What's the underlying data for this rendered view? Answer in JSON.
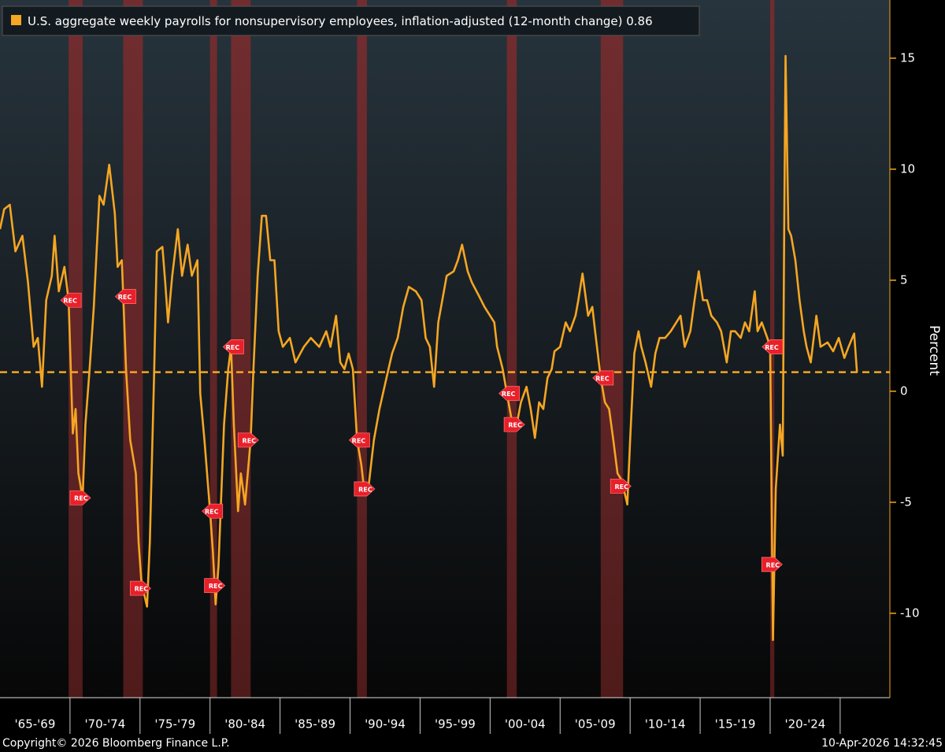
{
  "chart_data": {
    "type": "line",
    "series": [
      {
        "name": "U.S. aggregate weekly payrolls for nonsupervisory employees, inflation-adjusted (12-month change)",
        "color": "#f5a623",
        "values": [
          7.3,
          8.2,
          8.4,
          6.3,
          7.0,
          4.9,
          2.0,
          2.4,
          0.2,
          4.1,
          5.2,
          7.0,
          4.5,
          5.6,
          4.1,
          -1.9,
          -0.8,
          -3.7,
          -4.8,
          -1.5,
          1.0,
          3.8,
          8.8,
          8.4,
          10.2,
          8.0,
          5.6,
          5.9,
          1.0,
          -2.2,
          -3.7,
          -6.8,
          -8.6,
          -9.7,
          -6.8,
          0.6,
          6.3,
          6.5,
          4.9,
          3.1,
          5.2,
          7.3,
          5.2,
          6.6,
          5.2,
          5.9,
          -0.1,
          -2.2,
          -5.4,
          -7.2,
          -9.6,
          -7.9,
          -1.5,
          1.0,
          2.0,
          -1.5,
          -5.4,
          -3.7,
          -5.1,
          -2.2,
          1.0,
          5.2,
          7.9,
          7.9,
          5.9,
          5.9,
          2.7,
          2.0,
          2.4,
          1.3,
          2.0,
          2.4,
          2.0,
          2.7,
          2.0,
          3.4,
          1.3,
          1.0,
          1.7,
          1.0,
          -2.2,
          -3.3,
          -4.4,
          -4.4,
          -2.2,
          -0.8,
          0.6,
          1.7,
          2.4,
          3.8,
          4.7,
          4.5,
          4.1,
          2.4,
          2.0,
          0.2,
          3.1,
          3.8,
          5.2,
          5.4,
          5.9,
          6.6,
          5.4,
          4.9,
          4.3,
          3.8,
          3.4,
          3.1,
          2.0,
          1.0,
          -0.1,
          -1.5,
          -1.5,
          -0.5,
          0.2,
          -0.8,
          -2.1,
          -0.5,
          -0.8,
          0.6,
          1.0,
          1.8,
          2.0,
          3.1,
          2.7,
          3.4,
          4.1,
          5.3,
          3.4,
          3.8,
          2.7,
          0.6,
          -0.5,
          -0.8,
          -2.2,
          -3.7,
          -4.0,
          -5.1,
          -2.2,
          1.7,
          2.7,
          2.0,
          1.3,
          0.2,
          1.7,
          2.4,
          2.4,
          2.7,
          3.1,
          3.4,
          2.0,
          2.7,
          4.1,
          5.4,
          4.1,
          4.1,
          3.4,
          3.1,
          2.7,
          1.3,
          2.7,
          2.7,
          2.4,
          3.1,
          2.7,
          4.5,
          2.7,
          3.1,
          2.4,
          2.0,
          -4.4,
          -11.2,
          -4.4,
          -1.5,
          -2.9,
          7.0,
          15.1,
          7.3,
          7.0,
          5.9,
          4.1,
          2.7,
          2.0,
          1.3,
          3.4,
          2.0,
          2.2,
          1.8,
          2.4,
          1.5,
          2.0,
          2.6,
          0.86
        ]
      }
    ],
    "x": [
      1965.0,
      1965.3,
      1965.7,
      1966.1,
      1966.6,
      1967.0,
      1967.4,
      1967.7,
      1968.0,
      1968.3,
      1968.7,
      1968.9,
      1969.2,
      1969.6,
      1969.9,
      1970.2,
      1970.4,
      1970.6,
      1970.9,
      1971.1,
      1971.4,
      1971.7,
      1972.1,
      1972.4,
      1972.8,
      1973.2,
      1973.4,
      1973.7,
      1974.0,
      1974.3,
      1974.7,
      1974.9,
      1975.1,
      1975.5,
      1975.7,
      1976.0,
      1976.2,
      1976.6,
      1976.8,
      1977.0,
      1977.3,
      1977.7,
      1978.0,
      1978.4,
      1978.7,
      1979.1,
      1979.3,
      1979.6,
      1980.0,
      1980.2,
      1980.4,
      1980.6,
      1981.0,
      1981.3,
      1981.5,
      1981.7,
      1982.0,
      1982.2,
      1982.5,
      1982.9,
      1983.1,
      1983.4,
      1983.7,
      1984.0,
      1984.3,
      1984.6,
      1984.9,
      1985.2,
      1985.7,
      1986.1,
      1986.7,
      1987.2,
      1987.8,
      1988.3,
      1988.6,
      1989.0,
      1989.3,
      1989.6,
      1989.9,
      1990.2,
      1990.5,
      1990.8,
      1991.0,
      1991.3,
      1991.7,
      1992.1,
      1992.6,
      1993.0,
      1993.4,
      1993.8,
      1994.2,
      1994.7,
      1995.1,
      1995.4,
      1995.7,
      1996.0,
      1996.3,
      1996.5,
      1996.9,
      1997.4,
      1997.7,
      1998.0,
      1998.4,
      1998.7,
      1999.2,
      1999.6,
      2000.0,
      2000.3,
      2000.5,
      2000.9,
      2001.2,
      2001.6,
      2001.9,
      2002.2,
      2002.6,
      2002.9,
      2003.2,
      2003.5,
      2003.8,
      2004.1,
      2004.4,
      2004.6,
      2005.0,
      2005.4,
      2005.7,
      2006.1,
      2006.3,
      2006.6,
      2007.0,
      2007.3,
      2007.5,
      2007.9,
      2008.2,
      2008.5,
      2008.8,
      2009.1,
      2009.4,
      2009.8,
      2010.0,
      2010.3,
      2010.6,
      2010.8,
      2011.1,
      2011.5,
      2011.8,
      2012.1,
      2012.5,
      2012.9,
      2013.3,
      2013.6,
      2013.9,
      2014.3,
      2014.6,
      2014.9,
      2015.2,
      2015.5,
      2015.8,
      2016.2,
      2016.5,
      2016.9,
      2017.2,
      2017.5,
      2017.9,
      2018.2,
      2018.5,
      2018.9,
      2019.1,
      2019.4,
      2019.8,
      2020.0,
      2020.1,
      2020.2,
      2020.4,
      2020.7,
      2020.9,
      2021.0,
      2021.1,
      2021.3,
      2021.5,
      2021.8,
      2022.1,
      2022.4,
      2022.6,
      2022.9,
      2023.3,
      2023.6,
      2024.1,
      2024.5,
      2024.9,
      2025.3,
      2025.6,
      2026.0,
      2026.2
    ],
    "last_value": 0.86,
    "y_label": "Percent",
    "xlim": [
      1965,
      2028.55
    ],
    "ylim": [
      -13.8,
      17.62
    ],
    "yticks": [
      -10,
      -5,
      0,
      5,
      10,
      15
    ],
    "xticks": [
      1970,
      1975,
      1980,
      1985,
      1990,
      1995,
      2000,
      2005,
      2010,
      2015,
      2020,
      2025
    ],
    "x_period_labels": [
      {
        "value": 1965,
        "label": "'65-'69"
      },
      {
        "value": 1970,
        "label": "'70-'74"
      },
      {
        "value": 1975,
        "label": "'75-'79"
      },
      {
        "value": 1980,
        "label": "'80-'84"
      },
      {
        "value": 1985,
        "label": "'85-'89"
      },
      {
        "value": 1990,
        "label": "'90-'94"
      },
      {
        "value": 1995,
        "label": "'95-'99"
      },
      {
        "value": 2000,
        "label": "'00-'04"
      },
      {
        "value": 2005,
        "label": "'05-'09"
      },
      {
        "value": 2010,
        "label": "'10-'14"
      },
      {
        "value": 2015,
        "label": "'15-'19"
      },
      {
        "value": 2020,
        "label": "'20-'24"
      }
    ],
    "recessions": [
      [
        1969.9,
        1970.9
      ],
      [
        1973.8,
        1975.2
      ],
      [
        1980.0,
        1980.5
      ],
      [
        1981.5,
        1982.9
      ],
      [
        1990.5,
        1991.2
      ],
      [
        2001.2,
        2001.9
      ],
      [
        2007.9,
        2009.5
      ],
      [
        2020.0,
        2020.3
      ]
    ],
    "recession_color": "#8a2a2a",
    "recession_label": "REC",
    "copyright": "Copyright© 2026 Bloomberg Finance L.P.",
    "timestamp": "10-Apr-2026 14:32:45"
  }
}
